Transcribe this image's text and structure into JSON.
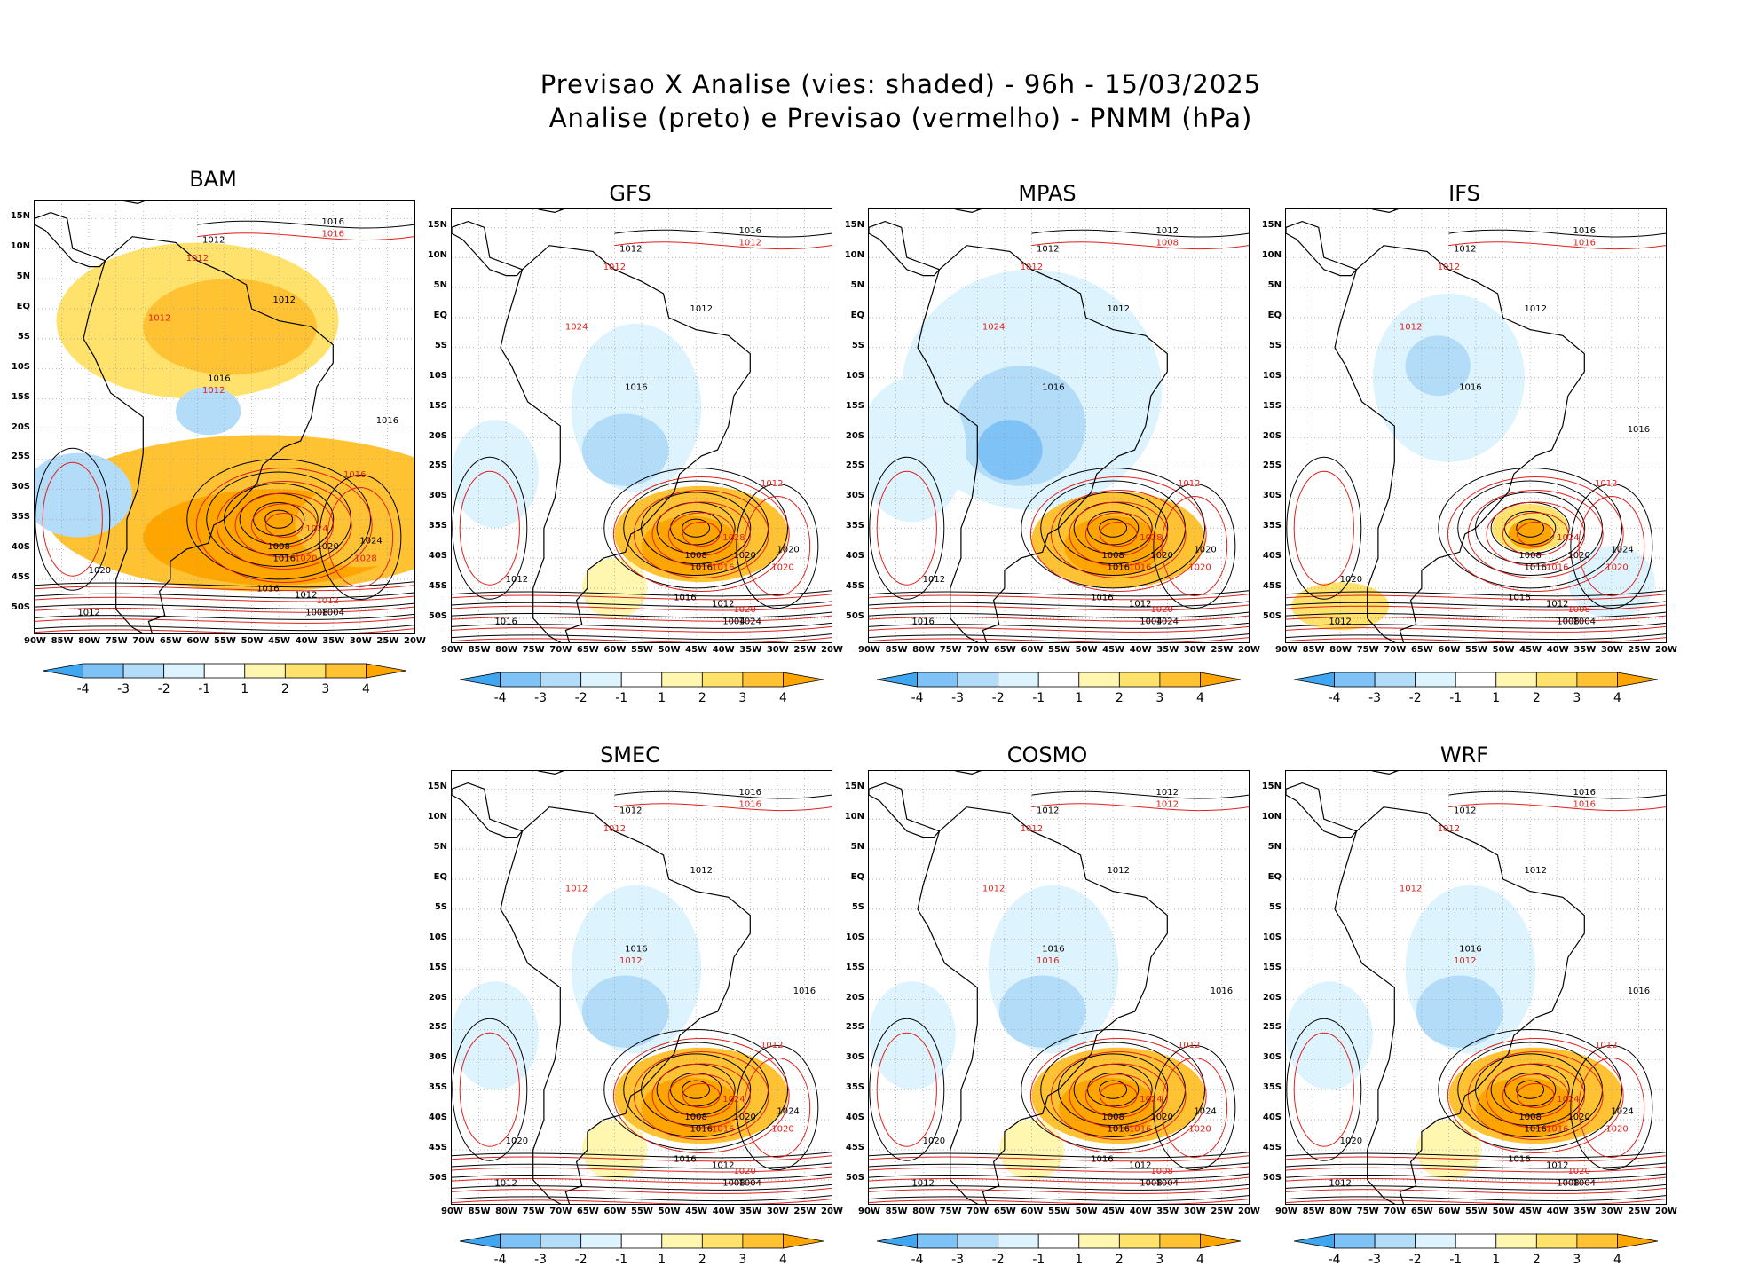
{
  "header": {
    "line1": "Previsao X Analise (vies: shaded) - 96h - 15/03/2025",
    "line2": "Analise (preto) e Previsao (vermelho) - PNMM (hPa)"
  },
  "colors": {
    "neg4": "#3fa6f2",
    "neg3": "#7fc2f5",
    "neg2": "#b3dcf8",
    "neg1": "#ddf3fd",
    "zero": "#ffffff",
    "pos1": "#fff6b0",
    "pos2": "#ffe26b",
    "pos3": "#ffc233",
    "pos4": "#ffa500",
    "analysis_contour": "#000000",
    "forecast_contour": "#e0201b",
    "land_border": "#000000"
  },
  "axes": {
    "lat_labels": [
      "15N",
      "10N",
      "5N",
      "EQ",
      "5S",
      "10S",
      "15S",
      "20S",
      "25S",
      "30S",
      "35S",
      "40S",
      "45S",
      "50S"
    ],
    "lon_labels": [
      "90W",
      "85W",
      "80W",
      "75W",
      "70W",
      "65W",
      "60W",
      "55W",
      "50W",
      "45W",
      "40W",
      "35W",
      "30W",
      "25W",
      "20W"
    ]
  },
  "colorbar": {
    "labels": [
      "-4",
      "-3",
      "-2",
      "-1",
      "1",
      "2",
      "3",
      "4"
    ]
  },
  "panels": [
    {
      "id": "bam",
      "title": "BAM",
      "bias": "warm",
      "analysis_labels": [
        "1016",
        "1012",
        "1012",
        "1016",
        "1008",
        "1016",
        "1020",
        "1016",
        "1012",
        "1008",
        "1004",
        "1024",
        "1020",
        "1012",
        "1016"
      ],
      "forecast_labels": [
        "1016",
        "1012",
        "1012",
        "1024",
        "1028",
        "1020",
        "1016",
        "1012",
        "1012"
      ]
    },
    {
      "id": "gfs",
      "title": "GFS",
      "bias": "mixed",
      "analysis_labels": [
        "1016",
        "1012",
        "1012",
        "1016",
        "1008",
        "1016",
        "1020",
        "1016",
        "1012",
        "1004",
        "1024",
        "1020",
        "1012",
        "1016"
      ],
      "forecast_labels": [
        "1012",
        "1012",
        "1024",
        "1028",
        "1020",
        "1016",
        "1012",
        "1020"
      ]
    },
    {
      "id": "mpas",
      "title": "MPAS",
      "bias": "cool-north",
      "analysis_labels": [
        "1012",
        "1012",
        "1012",
        "1016",
        "1008",
        "1016",
        "1020",
        "1016",
        "1012",
        "1004",
        "1024",
        "1020",
        "1012",
        "1016"
      ],
      "forecast_labels": [
        "1008",
        "1012",
        "1024",
        "1028",
        "1020",
        "1016",
        "1012",
        "1020"
      ]
    },
    {
      "id": "ifs",
      "title": "IFS",
      "bias": "weak",
      "analysis_labels": [
        "1016",
        "1012",
        "1012",
        "1016",
        "1008",
        "1016",
        "1020",
        "1016",
        "1012",
        "1008",
        "1004",
        "1024",
        "1020",
        "1012",
        "1016"
      ],
      "forecast_labels": [
        "1016",
        "1012",
        "1012",
        "1024",
        "1020",
        "1016",
        "1012",
        "1008"
      ]
    },
    {
      "id": "smec",
      "title": "SMEC",
      "bias": "mixed",
      "analysis_labels": [
        "1016",
        "1012",
        "1012",
        "1016",
        "1008",
        "1016",
        "1020",
        "1016",
        "1012",
        "1008",
        "1004",
        "1024",
        "1020",
        "1012",
        "1016"
      ],
      "forecast_labels": [
        "1016",
        "1012",
        "1012",
        "1024",
        "1020",
        "1016",
        "1012",
        "1020",
        "1012"
      ]
    },
    {
      "id": "cosmo",
      "title": "COSMO",
      "bias": "mixed",
      "analysis_labels": [
        "1012",
        "1012",
        "1012",
        "1016",
        "1008",
        "1016",
        "1020",
        "1016",
        "1012",
        "1008",
        "1004",
        "1024",
        "1020",
        "1012",
        "1016"
      ],
      "forecast_labels": [
        "1012",
        "1012",
        "1012",
        "1024",
        "1020",
        "1016",
        "1012",
        "1008",
        "1016"
      ]
    },
    {
      "id": "wrf",
      "title": "WRF",
      "bias": "mixed",
      "analysis_labels": [
        "1016",
        "1012",
        "1012",
        "1016",
        "1008",
        "1016",
        "1020",
        "1016",
        "1012",
        "1008",
        "1004",
        "1024",
        "1020",
        "1012",
        "1016"
      ],
      "forecast_labels": [
        "1016",
        "1012",
        "1012",
        "1024",
        "1020",
        "1016",
        "1012",
        "1020",
        "1012"
      ]
    }
  ]
}
